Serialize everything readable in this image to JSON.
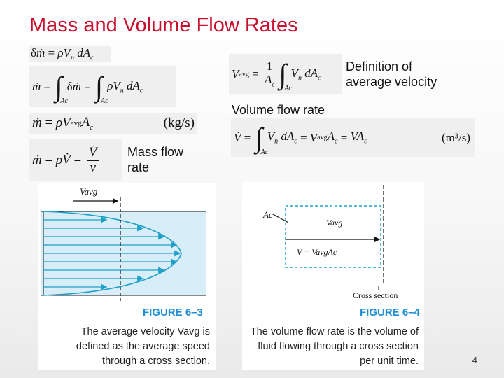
{
  "title": "Mass and Volume Flow Rates",
  "labels": {
    "average_velocity_definition": "Definition of average velocity",
    "volume_flow_rate": "Volume flow rate",
    "mass_flow_rate": "Mass flow rate"
  },
  "units": {
    "mass": "(kg/s)",
    "volume": "(m³/s)"
  },
  "figure_6_3": {
    "title": "FIGURE 6–3",
    "caption": "The average velocity Vavg is defined as the average speed through a cross section.",
    "label_vavg": "Vavg"
  },
  "figure_6_4": {
    "title": "FIGURE 6–4",
    "caption": "The volume flow rate is the volume of fluid flowing through a cross section per unit time.",
    "label_ac": "Ac",
    "label_vavg": "Vavg",
    "label_eq": "V̇ = VavgAc",
    "label_cross_section": "Cross section"
  },
  "page_number": "4"
}
